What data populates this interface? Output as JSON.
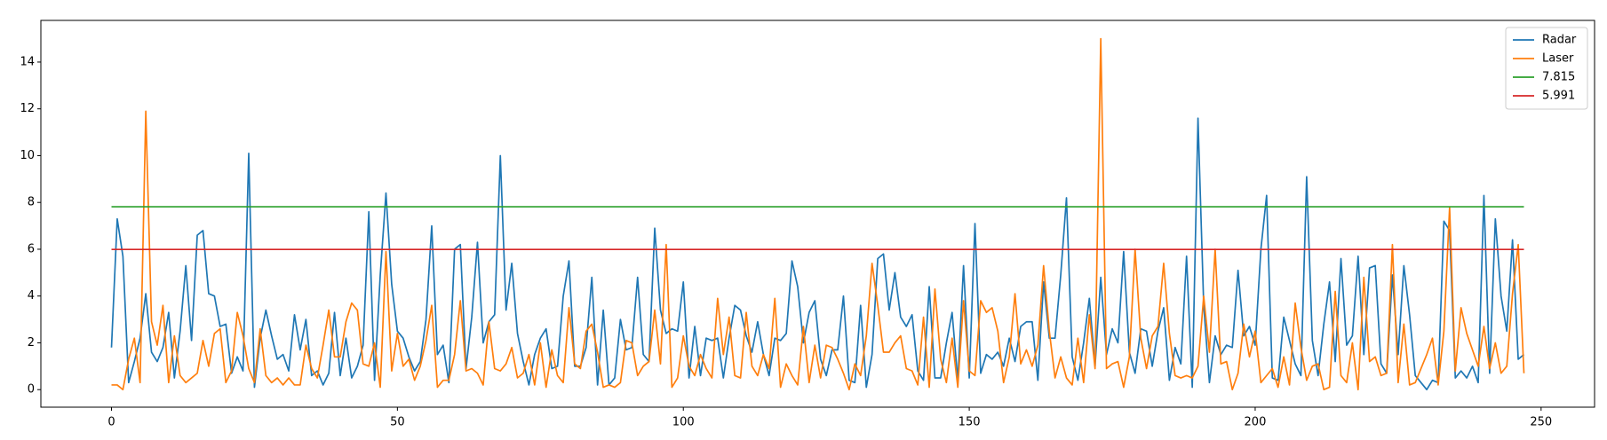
{
  "chart_data": {
    "type": "line",
    "x": [
      0,
      1,
      2,
      3,
      4,
      5,
      6,
      7,
      8,
      9,
      10,
      11,
      12,
      13,
      14,
      15,
      16,
      17,
      18,
      19,
      20,
      21,
      22,
      23,
      24,
      25,
      26,
      27,
      28,
      29,
      30,
      31,
      32,
      33,
      34,
      35,
      36,
      37,
      38,
      39,
      40,
      41,
      42,
      43,
      44,
      45,
      46,
      47,
      48,
      49,
      50,
      51,
      52,
      53,
      54,
      55,
      56,
      57,
      58,
      59,
      60,
      61,
      62,
      63,
      64,
      65,
      66,
      67,
      68,
      69,
      70,
      71,
      72,
      73,
      74,
      75,
      76,
      77,
      78,
      79,
      80,
      81,
      82,
      83,
      84,
      85,
      86,
      87,
      88,
      89,
      90,
      91,
      92,
      93,
      94,
      95,
      96,
      97,
      98,
      99,
      100,
      101,
      102,
      103,
      104,
      105,
      106,
      107,
      108,
      109,
      110,
      111,
      112,
      113,
      114,
      115,
      116,
      117,
      118,
      119,
      120,
      121,
      122,
      123,
      124,
      125,
      126,
      127,
      128,
      129,
      130,
      131,
      132,
      133,
      134,
      135,
      136,
      137,
      138,
      139,
      140,
      141,
      142,
      143,
      144,
      145,
      146,
      147,
      148,
      149,
      150,
      151,
      152,
      153,
      154,
      155,
      156,
      157,
      158,
      159,
      160,
      161,
      162,
      163,
      164,
      165,
      166,
      167,
      168,
      169,
      170,
      171,
      172,
      173,
      174,
      175,
      176,
      177,
      178,
      179,
      180,
      181,
      182,
      183,
      184,
      185,
      186,
      187,
      188,
      189,
      190,
      191,
      192,
      193,
      194,
      195,
      196,
      197,
      198,
      199,
      200,
      201,
      202,
      203,
      204,
      205,
      206,
      207,
      208,
      209,
      210,
      211,
      212,
      213,
      214,
      215,
      216,
      217,
      218,
      219,
      220,
      221,
      222,
      223,
      224,
      225,
      226,
      227,
      228,
      229,
      230,
      231,
      232,
      233,
      234,
      235,
      236,
      237,
      238,
      239,
      240,
      241,
      242,
      243,
      244,
      245,
      246,
      247
    ],
    "series": [
      {
        "name": "Radar",
        "color": "#1f77b4",
        "values": [
          1.8,
          7.3,
          5.7,
          0.3,
          1.2,
          2.2,
          4.1,
          1.6,
          1.2,
          1.8,
          3.3,
          0.5,
          2.5,
          5.3,
          2.1,
          6.6,
          6.8,
          4.1,
          4.0,
          2.7,
          2.8,
          0.7,
          1.4,
          0.8,
          10.1,
          0.1,
          2.2,
          3.4,
          2.3,
          1.3,
          1.5,
          0.8,
          3.2,
          1.7,
          3.0,
          0.6,
          0.8,
          0.2,
          0.7,
          3.3,
          0.6,
          2.2,
          0.5,
          1.0,
          1.9,
          7.6,
          0.4,
          4.9,
          8.4,
          4.5,
          2.5,
          2.2,
          1.4,
          0.8,
          1.2,
          3.0,
          7.0,
          1.5,
          1.9,
          0.3,
          6.0,
          6.2,
          0.9,
          3.1,
          6.3,
          2.0,
          2.9,
          3.2,
          10.0,
          3.4,
          5.4,
          2.4,
          1.2,
          0.2,
          1.5,
          2.2,
          2.6,
          0.9,
          1.0,
          4.0,
          5.5,
          1.0,
          1.0,
          1.8,
          4.8,
          0.2,
          3.4,
          0.2,
          0.5,
          3.0,
          1.7,
          1.8,
          4.8,
          1.5,
          1.2,
          6.9,
          3.4,
          2.4,
          2.6,
          2.5,
          4.6,
          0.5,
          2.7,
          0.6,
          2.2,
          2.1,
          2.2,
          0.5,
          2.2,
          3.6,
          3.4,
          2.3,
          1.6,
          2.9,
          1.5,
          0.6,
          2.2,
          2.1,
          2.4,
          5.5,
          4.4,
          2.0,
          3.3,
          3.8,
          1.3,
          0.6,
          1.7,
          1.7,
          4.0,
          0.4,
          0.3,
          3.6,
          0.1,
          1.5,
          5.6,
          5.8,
          3.4,
          5.0,
          3.1,
          2.7,
          3.2,
          0.8,
          0.4,
          4.4,
          0.5,
          0.5,
          2.0,
          3.3,
          0.4,
          5.3,
          0.5,
          7.1,
          0.7,
          1.5,
          1.3,
          1.6,
          1.0,
          2.2,
          1.2,
          2.7,
          2.9,
          2.9,
          0.4,
          4.6,
          2.2,
          2.2,
          4.9,
          8.2,
          1.4,
          0.4,
          2.0,
          3.9,
          1.0,
          4.8,
          1.5,
          2.6,
          2.0,
          5.9,
          1.6,
          0.7,
          2.6,
          2.5,
          1.0,
          2.5,
          3.5,
          0.4,
          1.8,
          1.1,
          5.7,
          0.1,
          11.6,
          3.6,
          0.3,
          2.3,
          1.5,
          1.9,
          1.8,
          5.1,
          2.3,
          2.7,
          1.9,
          6.0,
          8.3,
          0.5,
          0.4,
          3.1,
          2.1,
          1.1,
          0.6,
          9.1,
          2.1,
          0.6,
          2.8,
          4.6,
          1.2,
          5.6,
          1.9,
          2.3,
          5.7,
          1.5,
          5.2,
          5.3,
          1.1,
          0.7,
          4.9,
          1.5,
          5.3,
          3.2,
          0.6,
          0.3,
          0.0,
          0.4,
          0.3,
          7.2,
          6.8,
          0.5,
          0.8,
          0.5,
          1.0,
          0.3,
          8.3,
          0.7,
          7.3,
          4.0,
          2.5,
          6.4,
          1.3,
          1.5
        ]
      },
      {
        "name": "Laser",
        "color": "#ff7f0e",
        "values": [
          0.2,
          0.2,
          0.0,
          1.3,
          2.2,
          0.3,
          11.9,
          2.9,
          1.9,
          3.6,
          0.3,
          2.3,
          0.6,
          0.3,
          0.5,
          0.7,
          2.1,
          1.0,
          2.4,
          2.6,
          0.3,
          0.8,
          3.3,
          2.3,
          0.9,
          0.3,
          2.6,
          0.6,
          0.3,
          0.5,
          0.2,
          0.5,
          0.2,
          0.2,
          1.9,
          0.9,
          0.5,
          1.9,
          3.4,
          1.4,
          1.4,
          2.9,
          3.7,
          3.4,
          1.1,
          1.0,
          2.0,
          0.1,
          5.9,
          0.8,
          2.4,
          1.0,
          1.3,
          0.4,
          1.0,
          2.1,
          3.6,
          0.1,
          0.4,
          0.4,
          1.5,
          3.8,
          0.8,
          0.9,
          0.7,
          0.2,
          2.9,
          0.9,
          0.8,
          1.1,
          1.8,
          0.5,
          0.7,
          1.5,
          0.2,
          2.0,
          0.1,
          1.7,
          0.6,
          0.3,
          3.5,
          1.1,
          0.9,
          2.5,
          2.8,
          1.6,
          0.1,
          0.2,
          0.1,
          0.3,
          2.1,
          2.0,
          0.6,
          1.0,
          1.2,
          3.4,
          1.1,
          6.2,
          0.1,
          0.5,
          2.3,
          1.0,
          0.6,
          1.5,
          0.9,
          0.5,
          3.9,
          1.5,
          3.1,
          0.6,
          0.5,
          3.3,
          1.0,
          0.6,
          1.5,
          0.9,
          3.9,
          0.1,
          1.1,
          0.6,
          0.2,
          2.7,
          0.3,
          1.9,
          0.5,
          1.9,
          1.8,
          1.3,
          0.7,
          0.0,
          1.1,
          0.6,
          2.3,
          5.4,
          3.6,
          1.6,
          1.6,
          2.0,
          2.3,
          0.9,
          0.8,
          0.2,
          3.1,
          0.1,
          4.3,
          1.3,
          0.3,
          2.2,
          0.1,
          3.8,
          0.8,
          0.6,
          3.8,
          3.3,
          3.5,
          2.5,
          0.3,
          1.4,
          4.1,
          1.1,
          1.7,
          1.0,
          1.9,
          5.3,
          2.5,
          0.5,
          1.4,
          0.5,
          0.2,
          2.2,
          0.3,
          3.2,
          0.9,
          15.0,
          0.9,
          1.1,
          1.2,
          0.1,
          1.4,
          6.0,
          2.2,
          0.9,
          2.3,
          2.7,
          5.4,
          2.4,
          0.6,
          0.5,
          0.6,
          0.5,
          1.0,
          4.0,
          1.6,
          6.0,
          1.1,
          1.2,
          0.0,
          0.7,
          2.8,
          1.4,
          2.5,
          0.3,
          0.6,
          0.9,
          0.1,
          1.4,
          0.2,
          3.7,
          1.8,
          0.4,
          1.0,
          1.1,
          0.0,
          0.1,
          4.2,
          0.6,
          0.3,
          2.0,
          0.0,
          4.8,
          1.2,
          1.4,
          0.6,
          0.7,
          6.2,
          0.3,
          2.8,
          0.2,
          0.3,
          0.9,
          1.5,
          2.2,
          0.2,
          2.5,
          7.8,
          0.8,
          3.5,
          2.4,
          1.7,
          1.0,
          2.7,
          0.9,
          2.0,
          0.7,
          1.0,
          4.1,
          6.2,
          0.7
        ]
      }
    ],
    "hlines": [
      {
        "name": "7.815",
        "value": 7.815,
        "color": "#2ca02c"
      },
      {
        "name": "5.991",
        "value": 5.991,
        "color": "#d62728"
      }
    ],
    "xlim": [
      -12.35,
      259.35
    ],
    "ylim": [
      -0.75,
      15.78
    ],
    "xticks": [
      0,
      50,
      100,
      150,
      200,
      250
    ],
    "yticks": [
      0,
      2,
      4,
      6,
      8,
      10,
      12,
      14
    ],
    "legend": "upper right"
  }
}
